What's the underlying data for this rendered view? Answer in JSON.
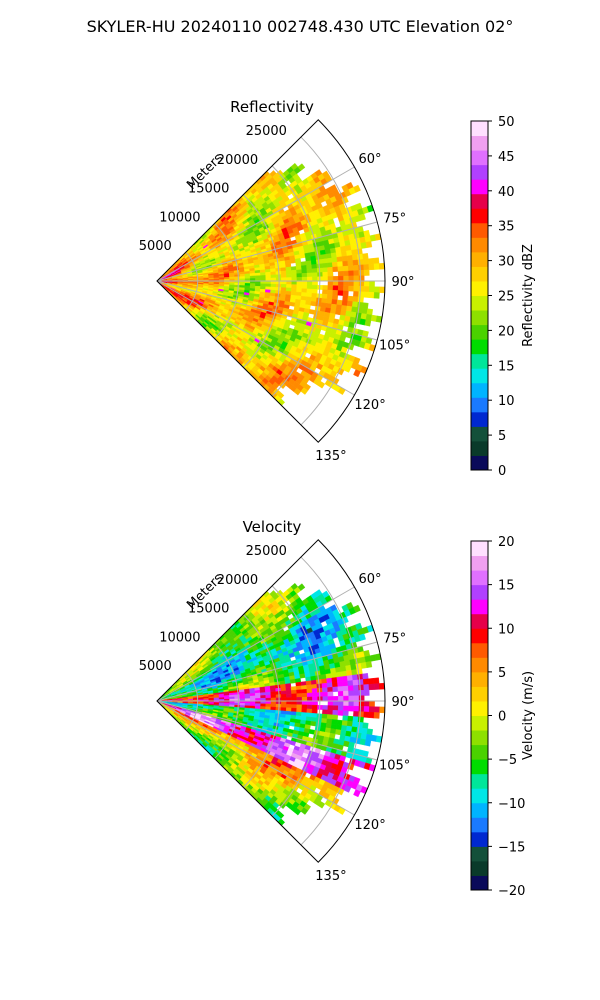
{
  "figure": {
    "title": "SKYLER-HU  20240110  002748.430 UTC Elevation 02°"
  },
  "chart_data": [
    {
      "type": "heatmap",
      "title": "Reflectivity",
      "projection": "polar-sector",
      "theta_ticks_deg": [
        "60°",
        "75°",
        "90°",
        "105°",
        "120°",
        "135°"
      ],
      "theta_range_deg": [
        45,
        135
      ],
      "r_label": "Meters",
      "r_ticks": [
        "5000",
        "10000",
        "15000",
        "20000",
        "25000"
      ],
      "r_range_m": [
        0,
        28000
      ],
      "grid": true,
      "colorbar": {
        "label": "Reflectivity dBZ",
        "range": [
          0,
          50
        ],
        "ticks": [
          "0",
          "5",
          "10",
          "15",
          "20",
          "25",
          "30",
          "35",
          "40",
          "45",
          "50"
        ],
        "colors": [
          "#0a0a5a",
          "#0a3a2a",
          "#14503a",
          "#0028d0",
          "#1a7aff",
          "#00b4ff",
          "#00e6e6",
          "#00e69a",
          "#00dc00",
          "#4ad200",
          "#8ee000",
          "#c8f000",
          "#fff000",
          "#ffd000",
          "#ffb000",
          "#ff8a00",
          "#ff5a00",
          "#ff0000",
          "#e6004a",
          "#ff00ff",
          "#b040ff",
          "#e070ff",
          "#f0a0f0",
          "#ffe0ff"
        ]
      },
      "description_values": {
        "dominant_dbz_far_range": [
          20,
          32
        ],
        "near_range_dbz": [
          33,
          38
        ]
      }
    },
    {
      "type": "heatmap",
      "title": "Velocity",
      "projection": "polar-sector",
      "theta_ticks_deg": [
        "60°",
        "75°",
        "90°",
        "105°",
        "120°",
        "135°"
      ],
      "theta_range_deg": [
        45,
        135
      ],
      "r_label": "Meters",
      "r_ticks": [
        "5000",
        "10000",
        "15000",
        "20000",
        "25000"
      ],
      "r_range_m": [
        0,
        28000
      ],
      "grid": true,
      "colorbar": {
        "label": "Velocity (m/s)",
        "range": [
          -20,
          20
        ],
        "ticks": [
          "−20",
          "−15",
          "−10",
          "−5",
          "0",
          "5",
          "10",
          "15",
          "20"
        ],
        "colors": [
          "#0a0a5a",
          "#0a3a2a",
          "#14503a",
          "#0028d0",
          "#1a7aff",
          "#00b4ff",
          "#00e6e6",
          "#00e69a",
          "#00dc00",
          "#4ad200",
          "#8ee000",
          "#c8f000",
          "#fff000",
          "#ffd000",
          "#ffb000",
          "#ff8a00",
          "#ff5a00",
          "#ff0000",
          "#e6004a",
          "#ff00ff",
          "#b040ff",
          "#e070ff",
          "#f0a0f0",
          "#ffe0ff"
        ]
      }
    }
  ]
}
